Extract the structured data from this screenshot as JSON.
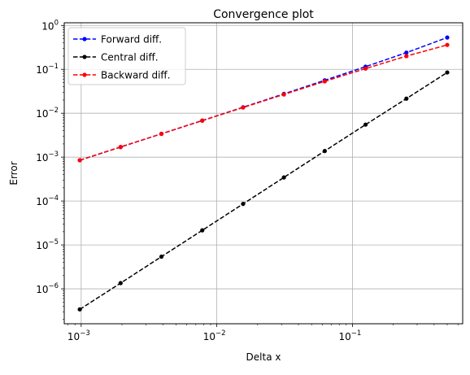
{
  "chart_data": {
    "type": "line",
    "title": "Convergence plot",
    "xlabel": "Delta x",
    "ylabel": "Error",
    "xscale": "log",
    "yscale": "log",
    "xlim": [
      0.00075,
      0.65
    ],
    "ylim": [
      1.6e-07,
      1.15
    ],
    "grid": true,
    "legend_position": "top-left",
    "x_ticks": [
      {
        "value": 0.001,
        "base": "10",
        "exp": "−3"
      },
      {
        "value": 0.01,
        "base": "10",
        "exp": "−2"
      },
      {
        "value": 0.1,
        "base": "10",
        "exp": "−1"
      }
    ],
    "y_ticks": [
      {
        "value": 1e-06,
        "base": "10",
        "exp": "−6"
      },
      {
        "value": 1e-05,
        "base": "10",
        "exp": "−5"
      },
      {
        "value": 0.0001,
        "base": "10",
        "exp": "−4"
      },
      {
        "value": 0.001,
        "base": "10",
        "exp": "−3"
      },
      {
        "value": 0.01,
        "base": "10",
        "exp": "−2"
      },
      {
        "value": 0.1,
        "base": "10",
        "exp": "−1"
      },
      {
        "value": 1,
        "base": "10",
        "exp": "0"
      }
    ],
    "x": [
      0.0009765625,
      0.001953125,
      0.00390625,
      0.0078125,
      0.015625,
      0.03125,
      0.0625,
      0.125,
      0.25,
      0.5
    ],
    "series": [
      {
        "name": "Forward diff.",
        "color": "#0000ff",
        "values": [
          0.00085,
          0.0017,
          0.0034,
          0.0068,
          0.0137,
          0.0276,
          0.0562,
          0.115,
          0.24,
          0.53
        ]
      },
      {
        "name": "Central diff.",
        "color": "#000000",
        "values": [
          3.4e-07,
          1.35e-06,
          5.4e-06,
          2.15e-05,
          8.6e-05,
          0.000345,
          0.00138,
          0.0055,
          0.0215,
          0.085
        ]
      },
      {
        "name": "Backward diff.",
        "color": "#ff0000",
        "values": [
          0.00085,
          0.0017,
          0.0034,
          0.0068,
          0.0135,
          0.0268,
          0.0532,
          0.104,
          0.2,
          0.36
        ]
      }
    ]
  }
}
